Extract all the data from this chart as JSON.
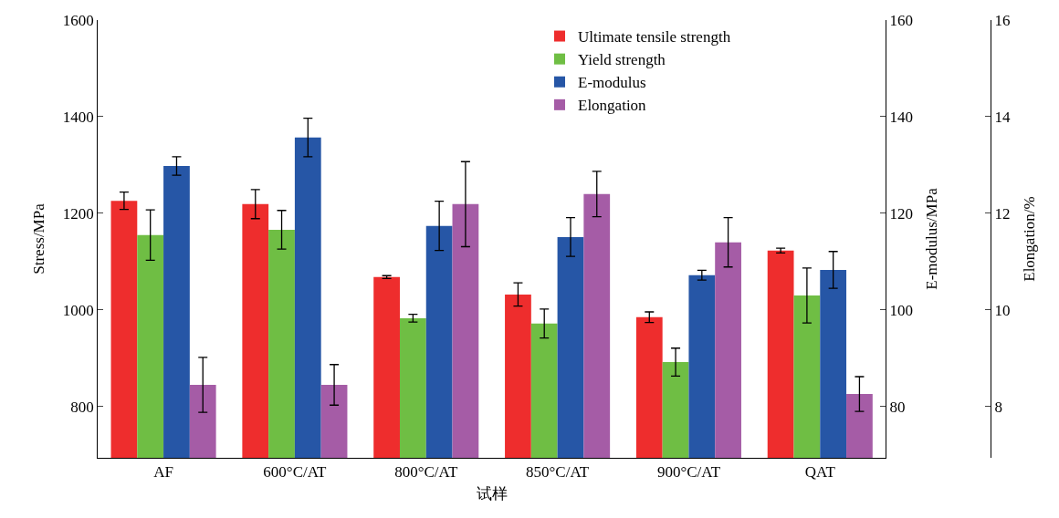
{
  "chart_data": {
    "type": "bar",
    "xlabel": "试样",
    "ylabel": "Stress/MPa",
    "y2label": "E-modulus/MPa",
    "y3label": "Elongation/%",
    "categories": [
      "AF",
      "600°C/AT",
      "800°C/AT",
      "850°C/AT",
      "900°C/AT",
      "QAT"
    ],
    "series": [
      {
        "name": "Ultimate tensile strength",
        "color": "#ee2d2d",
        "values": [
          1226,
          1219,
          1068,
          1032,
          985,
          1123
        ],
        "errors": [
          18,
          30,
          3,
          24,
          11,
          5
        ]
      },
      {
        "name": "Yield strength",
        "color": "#6fbe44",
        "values": [
          1155,
          1166,
          983,
          972,
          892,
          1030
        ],
        "errors": [
          52,
          40,
          8,
          30,
          29,
          57
        ]
      },
      {
        "name": "E-modulus",
        "color": "#2656a6",
        "axis": "y2",
        "values": [
          129.8,
          135.7,
          117.4,
          115.1,
          107.2,
          108.3
        ],
        "errors": [
          1.9,
          4,
          5.1,
          4,
          1,
          3.8
        ]
      },
      {
        "name": "Elongation",
        "color": "#a55ca6",
        "axis": "y3",
        "values": [
          8.45,
          8.45,
          12.19,
          12.4,
          11.4,
          8.26
        ],
        "errors": [
          0.57,
          0.42,
          0.88,
          0.47,
          0.51,
          0.36
        ]
      }
    ],
    "ylim": [
      694,
      1600
    ],
    "yticks": [
      800,
      1000,
      1200,
      1400,
      1600
    ],
    "y2lim": [
      69.4,
      160
    ],
    "y2ticks": [
      80,
      100,
      120,
      140,
      160
    ],
    "y3lim": [
      6.94,
      16
    ],
    "y3ticks": [
      8,
      10,
      12,
      14,
      16
    ],
    "legend": "top right"
  }
}
